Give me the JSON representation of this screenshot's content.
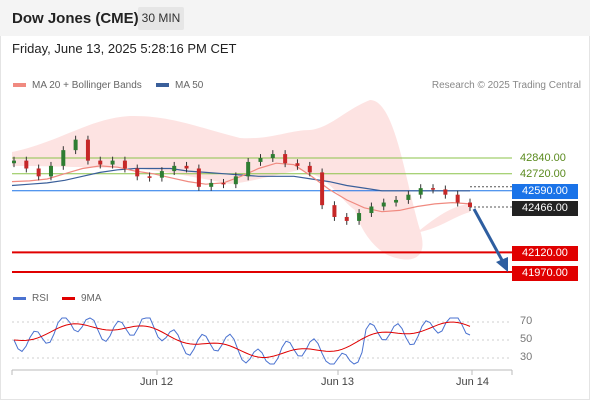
{
  "header": {
    "title": "Dow Jones (CME)",
    "timeframe": "30 MIN"
  },
  "datetime": "Friday, June 13, 2025 5:28:16 PM CET",
  "legend": {
    "ma20": {
      "label": "MA 20 + Bollinger Bands",
      "color": "#f08a80"
    },
    "ma50": {
      "label": "MA 50",
      "color": "#3a5f9a"
    }
  },
  "research": "Research © 2025 Trading Central",
  "colors": {
    "resistance": "#8bc34a",
    "support": "#e00000",
    "pivot": "#1a73e8",
    "current": "#222222",
    "up_candle": "#2e7d32",
    "down_candle": "#c62828",
    "arrow": "#2e5ea0",
    "band_fill": "#fde0df"
  },
  "price_levels": {
    "resistance_2": "42840.00",
    "resistance_1": "42720.00",
    "pivot": "42590.00",
    "current": "42466.00",
    "support_1": "42120.00",
    "support_2": "41970.00"
  },
  "rsi": {
    "legend_rsi": "RSI",
    "legend_ma": "9MA",
    "levels": [
      "70",
      "50",
      "30"
    ],
    "rsi_color": "#4a72d0",
    "ma_color": "#e00000"
  },
  "x_axis": {
    "labels": [
      "Jun 12",
      "Jun 13",
      "Jun 14"
    ]
  },
  "chart_data": {
    "type": "candlestick",
    "price_levels": [
      42840,
      42720,
      42590,
      42466,
      42120,
      41970
    ],
    "ma20": [
      42660,
      42665,
      42680,
      42720,
      42760,
      42780,
      42770,
      42740,
      42720,
      42690,
      42660,
      42640,
      42650,
      42700,
      42760,
      42800,
      42790,
      42700,
      42600,
      42520,
      42460,
      42430,
      42440,
      42470,
      42490,
      42500,
      42490
    ],
    "ma50": [
      42630,
      42640,
      42650,
      42670,
      42700,
      42730,
      42750,
      42760,
      42760,
      42760,
      42740,
      42730,
      42720,
      42710,
      42700,
      42700,
      42700,
      42680,
      42660,
      42630,
      42610,
      42590,
      42590,
      42590,
      42590,
      42590,
      42590
    ],
    "candles_close": [
      42820,
      42760,
      42700,
      42780,
      42900,
      42980,
      42820,
      42790,
      42820,
      42760,
      42700,
      42690,
      42740,
      42780,
      42760,
      42620,
      42650,
      42640,
      42700,
      42810,
      42840,
      42870,
      42800,
      42780,
      42730,
      42480,
      42390,
      42360,
      42420,
      42470,
      42500,
      42520,
      42560,
      42610,
      42600,
      42560,
      42500,
      42466
    ],
    "rsi_range": [
      30,
      70
    ]
  }
}
